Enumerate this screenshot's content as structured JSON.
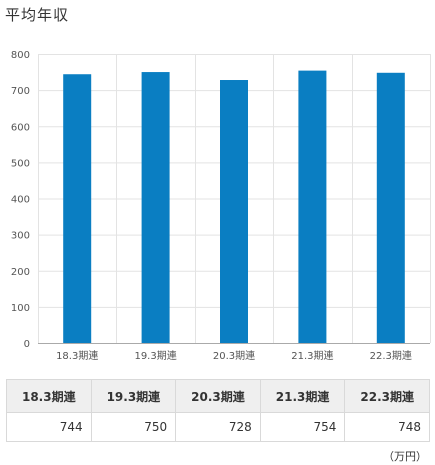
{
  "title": "平均年収",
  "chart_data": {
    "type": "bar",
    "categories": [
      "18.3期連",
      "19.3期連",
      "20.3期連",
      "21.3期連",
      "22.3期連"
    ],
    "values": [
      744,
      750,
      728,
      754,
      748
    ],
    "ylim": [
      0,
      800
    ],
    "yticks": [
      0,
      100,
      200,
      300,
      400,
      500,
      600,
      700,
      800
    ],
    "grid": true,
    "bar_color": "#0a7ec2"
  },
  "table": {
    "headers": [
      "18.3期連",
      "19.3期連",
      "20.3期連",
      "21.3期連",
      "22.3期連"
    ],
    "values": [
      "744",
      "750",
      "728",
      "754",
      "748"
    ]
  },
  "unit": "（万円）"
}
